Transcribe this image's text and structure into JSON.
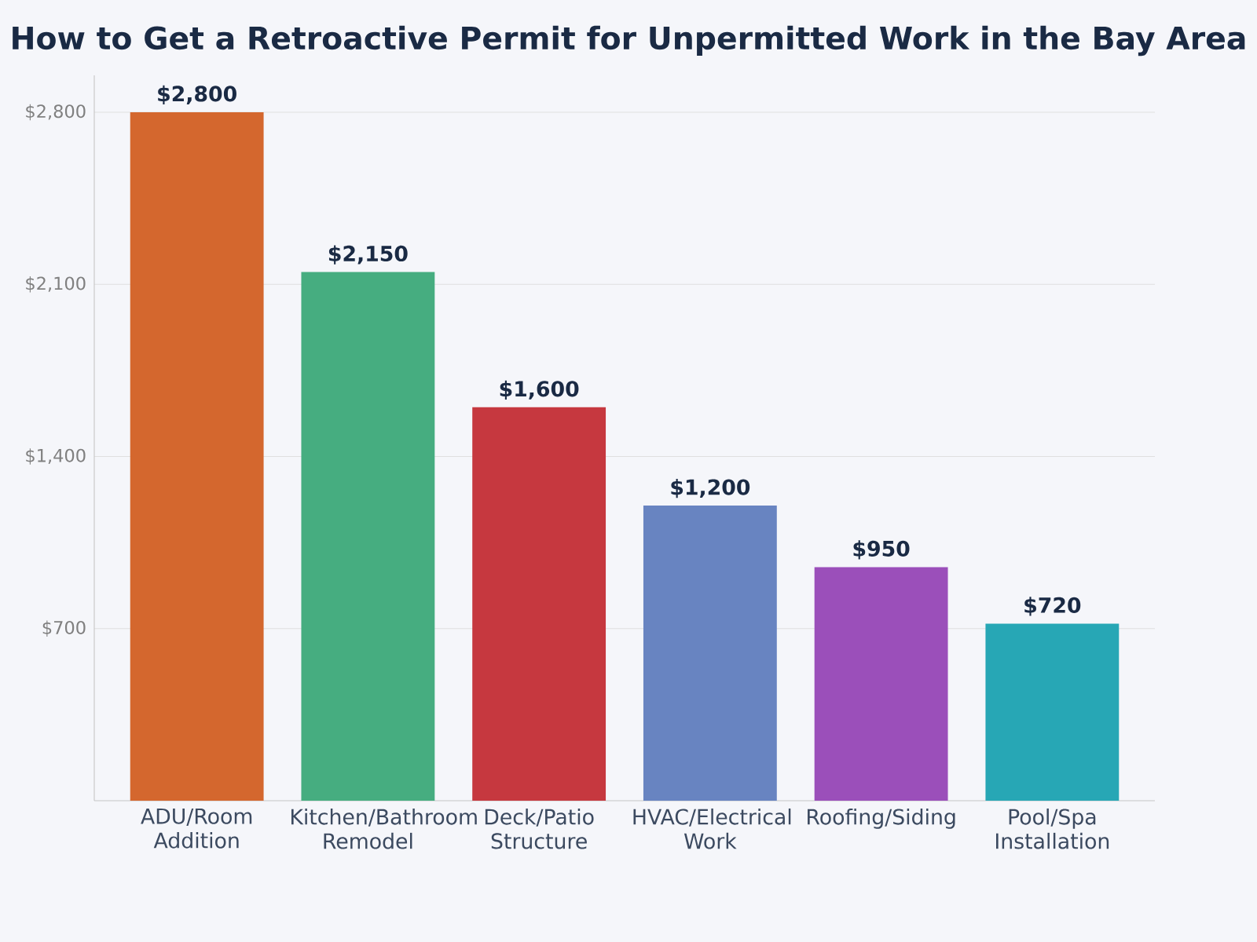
{
  "chart_data": {
    "type": "bar",
    "title": "How to Get a Retroactive Permit for Unpermitted Work in the Bay Area",
    "categories": [
      "ADU/Room Addition",
      "Kitchen/Bathroom Remodel",
      "Deck/Patio Structure",
      "HVAC/Electrical Work",
      "Roofing/Siding",
      "Pool/Spa Installation"
    ],
    "values": [
      2800,
      2150,
      1600,
      1200,
      950,
      720
    ],
    "colors": [
      "#d4672e",
      "#46ad80",
      "#c6383f",
      "#6884c1",
      "#9b4fba",
      "#27a7b5"
    ],
    "value_labels": [
      "$2,800",
      "$2,150",
      "$1,600",
      "$1,200",
      "$950",
      "$720"
    ],
    "ylim": [
      0,
      2950
    ],
    "yticks": [
      {
        "value": 700,
        "label": "$700"
      },
      {
        "value": 1400,
        "label": "$1,400"
      },
      {
        "value": 2100,
        "label": "$2,100"
      },
      {
        "value": 2800,
        "label": "$2,800"
      }
    ],
    "grid": "y"
  }
}
